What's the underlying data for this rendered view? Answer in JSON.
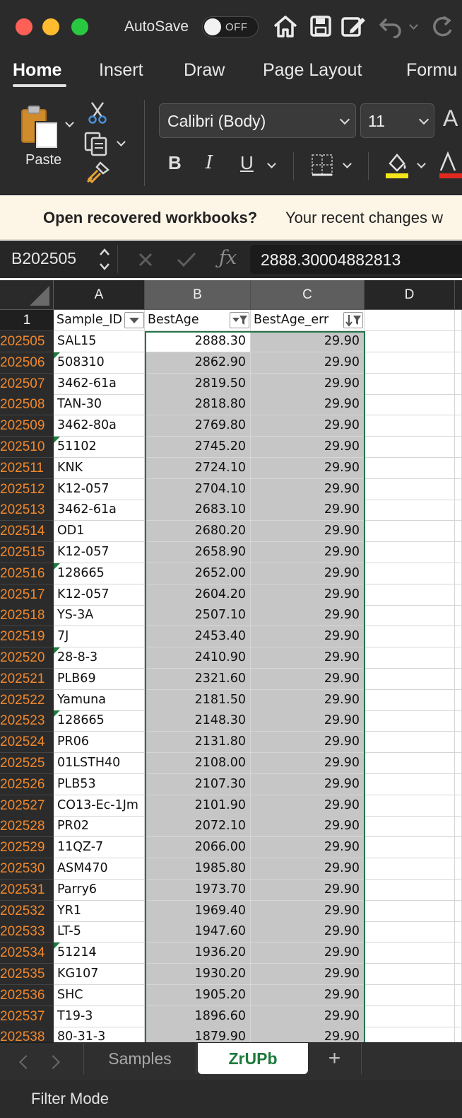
{
  "titlebar": {
    "autosave_label": "AutoSave",
    "autosave_state": "OFF"
  },
  "ribbon": {
    "tabs": [
      "Home",
      "Insert",
      "Draw",
      "Page Layout",
      "Formu"
    ],
    "active_tab": "Home",
    "paste_label": "Paste",
    "font_name": "Calibri (Body)",
    "font_size": "11",
    "bold": "B",
    "italic": "I",
    "underline": "U",
    "font_color_letter": "A"
  },
  "notification": {
    "title": "Open recovered workbooks?",
    "text": "Your recent changes w"
  },
  "formula_bar": {
    "name_box": "B202505",
    "formula": "2888.30004882813"
  },
  "sheet": {
    "columns": [
      "A",
      "B",
      "C",
      "D"
    ],
    "header_row": {
      "number": "1",
      "a": "Sample_ID",
      "b": "BestAge",
      "c": "BestAge_err"
    },
    "rows": [
      {
        "n": "202505",
        "a": "SAL15",
        "b": "2888.30",
        "c": "29.90",
        "flag": false
      },
      {
        "n": "202506",
        "a": "508310",
        "b": "2862.90",
        "c": "29.90",
        "flag": true
      },
      {
        "n": "202507",
        "a": "3462-61a",
        "b": "2819.50",
        "c": "29.90",
        "flag": false
      },
      {
        "n": "202508",
        "a": "TAN-30",
        "b": "2818.80",
        "c": "29.90",
        "flag": false
      },
      {
        "n": "202509",
        "a": "3462-80a",
        "b": "2769.80",
        "c": "29.90",
        "flag": false
      },
      {
        "n": "202510",
        "a": "51102",
        "b": "2745.20",
        "c": "29.90",
        "flag": true
      },
      {
        "n": "202511",
        "a": "KNK",
        "b": "2724.10",
        "c": "29.90",
        "flag": false
      },
      {
        "n": "202512",
        "a": "K12-057",
        "b": "2704.10",
        "c": "29.90",
        "flag": false
      },
      {
        "n": "202513",
        "a": "3462-61a",
        "b": "2683.10",
        "c": "29.90",
        "flag": false
      },
      {
        "n": "202514",
        "a": "OD1",
        "b": "2680.20",
        "c": "29.90",
        "flag": false
      },
      {
        "n": "202515",
        "a": "K12-057",
        "b": "2658.90",
        "c": "29.90",
        "flag": false
      },
      {
        "n": "202516",
        "a": "128665",
        "b": "2652.00",
        "c": "29.90",
        "flag": true
      },
      {
        "n": "202517",
        "a": "K12-057",
        "b": "2604.20",
        "c": "29.90",
        "flag": false
      },
      {
        "n": "202518",
        "a": "YS-3A",
        "b": "2507.10",
        "c": "29.90",
        "flag": false
      },
      {
        "n": "202519",
        "a": "7J",
        "b": "2453.40",
        "c": "29.90",
        "flag": false
      },
      {
        "n": "202520",
        "a": "28-8-3",
        "b": "2410.90",
        "c": "29.90",
        "flag": true
      },
      {
        "n": "202521",
        "a": "PLB69",
        "b": "2321.60",
        "c": "29.90",
        "flag": false
      },
      {
        "n": "202522",
        "a": "Yamuna",
        "b": "2181.50",
        "c": "29.90",
        "flag": false
      },
      {
        "n": "202523",
        "a": "128665",
        "b": "2148.30",
        "c": "29.90",
        "flag": true
      },
      {
        "n": "202524",
        "a": "PR06",
        "b": "2131.80",
        "c": "29.90",
        "flag": false
      },
      {
        "n": "202525",
        "a": "01LSTH40",
        "b": "2108.00",
        "c": "29.90",
        "flag": false
      },
      {
        "n": "202526",
        "a": "PLB53",
        "b": "2107.30",
        "c": "29.90",
        "flag": false
      },
      {
        "n": "202527",
        "a": "CO13-Ec-1Jm",
        "b": "2101.90",
        "c": "29.90",
        "flag": false
      },
      {
        "n": "202528",
        "a": "PR02",
        "b": "2072.10",
        "c": "29.90",
        "flag": false
      },
      {
        "n": "202529",
        "a": "11QZ-7",
        "b": "2066.00",
        "c": "29.90",
        "flag": false
      },
      {
        "n": "202530",
        "a": "ASM470",
        "b": "1985.80",
        "c": "29.90",
        "flag": false
      },
      {
        "n": "202531",
        "a": "Parry6",
        "b": "1973.70",
        "c": "29.90",
        "flag": false
      },
      {
        "n": "202532",
        "a": "YR1",
        "b": "1969.40",
        "c": "29.90",
        "flag": false
      },
      {
        "n": "202533",
        "a": "LT-5",
        "b": "1947.60",
        "c": "29.90",
        "flag": false
      },
      {
        "n": "202534",
        "a": "51214",
        "b": "1936.20",
        "c": "29.90",
        "flag": true
      },
      {
        "n": "202535",
        "a": "KG107",
        "b": "1930.20",
        "c": "29.90",
        "flag": false
      },
      {
        "n": "202536",
        "a": "SHC",
        "b": "1905.20",
        "c": "29.90",
        "flag": false
      },
      {
        "n": "202537",
        "a": "T19-3",
        "b": "1896.60",
        "c": "29.90",
        "flag": false
      },
      {
        "n": "202538",
        "a": "80-31-3",
        "b": "1879.90",
        "c": "29.90",
        "flag": false
      }
    ]
  },
  "sheet_tabs": {
    "tabs": [
      "Samples",
      "ZrUPb"
    ],
    "active": "ZrUPb",
    "add_label": "+"
  },
  "status_bar": {
    "text": "Filter Mode"
  },
  "colors": {
    "accent_green": "#1e7a3c",
    "filtered_row_number": "#f0882c",
    "selection_fill": "#c6c6c6"
  }
}
